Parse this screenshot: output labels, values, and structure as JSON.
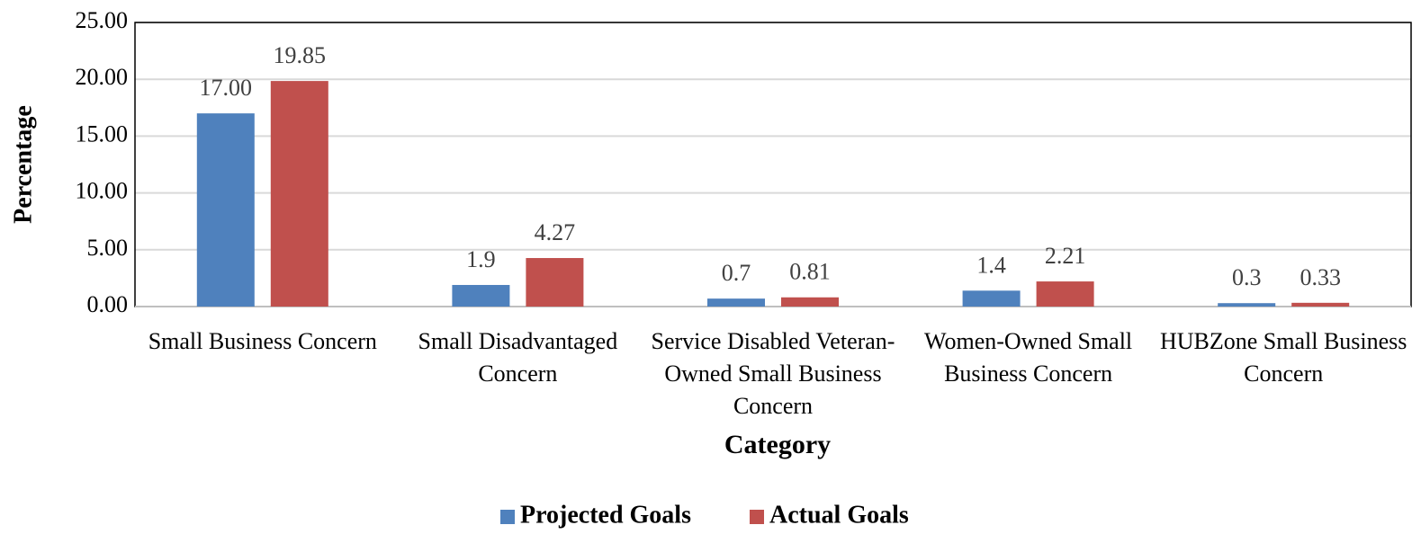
{
  "chart_data": {
    "type": "bar",
    "categories": [
      "Small Business Concern",
      "Small Disadvantaged Concern",
      "Service Disabled Veteran-Owned Small Business Concern",
      "Women-Owned Small Business Concern",
      "HUBZone Small Business Concern"
    ],
    "series": [
      {
        "name": "Projected Goals",
        "color": "#4f81bd",
        "values": [
          17,
          1.9,
          0.7,
          1.4,
          0.3
        ],
        "value_labels": [
          "17.00",
          "1.9",
          "0.7",
          "1.4",
          "0.3"
        ]
      },
      {
        "name": "Actual Goals",
        "color": "#c0504d",
        "values": [
          19.85,
          4.27,
          0.81,
          2.21,
          0.33
        ],
        "value_labels": [
          "19.85",
          "4.27",
          "0.81",
          "2.21",
          "0.33"
        ]
      }
    ],
    "xlabel": "Category",
    "ylabel": "Percentage",
    "ylim": [
      0,
      25
    ],
    "yticks": [
      {
        "value": 0,
        "label": "0.00"
      },
      {
        "value": 5,
        "label": "5.00"
      },
      {
        "value": 10,
        "label": "10.00"
      },
      {
        "value": 15,
        "label": "15.00"
      },
      {
        "value": 20,
        "label": "20.00"
      },
      {
        "value": 25,
        "label": "25.00"
      }
    ],
    "grid": true,
    "legend": "bottom"
  }
}
